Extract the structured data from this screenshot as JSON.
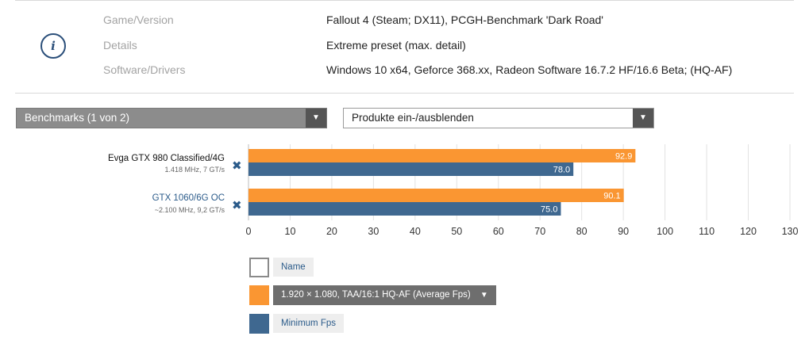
{
  "info": {
    "rows": [
      {
        "label": "Game/Version",
        "value": "Fallout 4 (Steam; DX11), PCGH-Benchmark 'Dark Road'"
      },
      {
        "label": "Details",
        "value": "Extreme preset (max. detail)"
      },
      {
        "label": "Software/Drivers",
        "value": "Windows 10 x64, Geforce 368.xx, Radeon Software 16.7.2 HF/16.6 Beta; (HQ-AF)"
      }
    ]
  },
  "controls": {
    "benchmarks_label": "Benchmarks (1 von 2)",
    "products_label": "Produkte ein-/ausblenden",
    "arrow": "▼",
    "remove_glyph": "✖"
  },
  "products": [
    {
      "name": "Evga GTX 980 Classified/4G",
      "sub": "1.418 MHz, 7 GT/s",
      "name_color": "#111111"
    },
    {
      "name": "GTX 1060/6G OC",
      "sub": "~2.100 MHz, 9,2 GT/s",
      "name_color": "#2b5b8a"
    }
  ],
  "chart_data": {
    "type": "bar",
    "orientation": "horizontal",
    "categories": [
      "Evga GTX 980 Classified/4G",
      "GTX 1060/6G OC"
    ],
    "series": [
      {
        "name": "1.920 × 1.080, TAA/16:1 HQ-AF (Average Fps)",
        "values": [
          92.9,
          90.1
        ],
        "labels": [
          "92.9",
          "90.1"
        ],
        "color": "#fa9632"
      },
      {
        "name": "Minimum Fps",
        "values": [
          78.0,
          75.0
        ],
        "labels": [
          "78.0",
          "75.0"
        ],
        "color": "#3f6890"
      }
    ],
    "xlim": [
      0,
      130
    ],
    "x_ticks": [
      0,
      10,
      20,
      30,
      40,
      50,
      60,
      70,
      80,
      90,
      100,
      110,
      120,
      130
    ],
    "grid": true
  },
  "legend": {
    "name_label": "Name",
    "avg_label": "1.920 × 1.080, TAA/16:1 HQ-AF (Average Fps)",
    "min_label": "Minimum Fps",
    "avg_color": "#fa9632",
    "min_color": "#3f6890"
  }
}
